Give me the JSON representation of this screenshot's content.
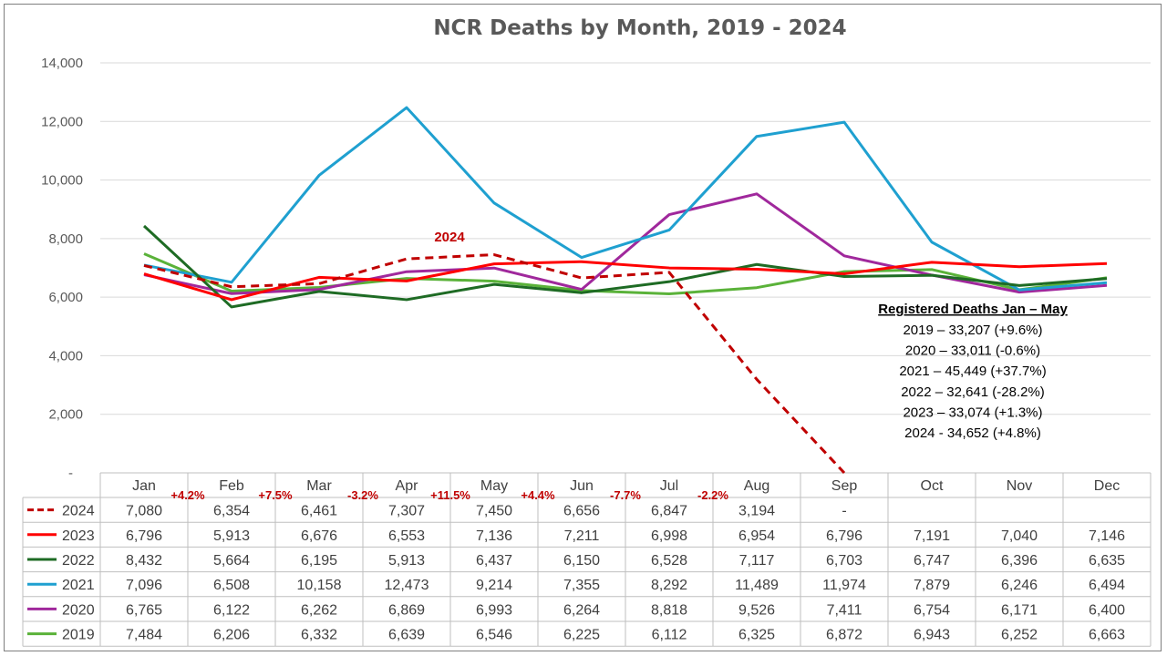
{
  "chart_data": {
    "type": "line",
    "title": "NCR Deaths by Month, 2019 - 2024",
    "categories": [
      "Jan",
      "Feb",
      "Mar",
      "Apr",
      "May",
      "Jun",
      "Jul",
      "Aug",
      "Sep",
      "Oct",
      "Nov",
      "Dec"
    ],
    "y_tick_labels": [
      "-",
      "2,000",
      "4,000",
      "6,000",
      "8,000",
      "10,000",
      "12,000",
      "14,000"
    ],
    "ylim": [
      0,
      14000
    ],
    "grid": true,
    "series": [
      {
        "name": "2024",
        "color": "#c00000",
        "dashed": true,
        "values": [
          7080,
          6354,
          6461,
          7307,
          7450,
          6656,
          6847,
          3194,
          0,
          null,
          null,
          null
        ],
        "labels": [
          "7,080",
          "6,354",
          "6,461",
          "7,307",
          "7,450",
          "6,656",
          "6,847",
          "3,194",
          "-",
          "",
          "",
          ""
        ]
      },
      {
        "name": "2023",
        "color": "#ff0000",
        "dashed": false,
        "values": [
          6796,
          5913,
          6676,
          6553,
          7136,
          7211,
          6998,
          6954,
          6796,
          7191,
          7040,
          7146
        ],
        "labels": [
          "6,796",
          "5,913",
          "6,676",
          "6,553",
          "7,136",
          "7,211",
          "6,998",
          "6,954",
          "6,796",
          "7,191",
          "7,040",
          "7,146"
        ]
      },
      {
        "name": "2022",
        "color": "#1e6b24",
        "dashed": false,
        "values": [
          8432,
          5664,
          6195,
          5913,
          6437,
          6150,
          6528,
          7117,
          6703,
          6747,
          6396,
          6635
        ],
        "labels": [
          "8,432",
          "5,664",
          "6,195",
          "5,913",
          "6,437",
          "6,150",
          "6,528",
          "7,117",
          "6,703",
          "6,747",
          "6,396",
          "6,635"
        ]
      },
      {
        "name": "2021",
        "color": "#1fa0d0",
        "dashed": false,
        "values": [
          7096,
          6508,
          10158,
          12473,
          9214,
          7355,
          8292,
          11489,
          11974,
          7879,
          6246,
          6494
        ],
        "labels": [
          "7,096",
          "6,508",
          "10,158",
          "12,473",
          "9,214",
          "7,355",
          "8,292",
          "11,489",
          "11,974",
          "7,879",
          "6,246",
          "6,494"
        ]
      },
      {
        "name": "2020",
        "color": "#a0289c",
        "dashed": false,
        "values": [
          6765,
          6122,
          6262,
          6869,
          6993,
          6264,
          8818,
          9526,
          7411,
          6754,
          6171,
          6400
        ],
        "labels": [
          "6,765",
          "6,122",
          "6,262",
          "6,869",
          "6,993",
          "6,264",
          "8,818",
          "9,526",
          "7,411",
          "6,754",
          "6,171",
          "6,400"
        ]
      },
      {
        "name": "2019",
        "color": "#5ab239",
        "dashed": false,
        "values": [
          7484,
          6206,
          6332,
          6639,
          6546,
          6225,
          6112,
          6325,
          6872,
          6943,
          6252,
          6663
        ],
        "labels": [
          "7,484",
          "6,206",
          "6,332",
          "6,639",
          "6,546",
          "6,225",
          "6,112",
          "6,325",
          "6,872",
          "6,943",
          "6,252",
          "6,663"
        ]
      }
    ],
    "pct_changes": [
      "+4.2%",
      "+7.5%",
      "-3.2%",
      "+11.5%",
      "+4.4%",
      "-7.7%",
      "-2.2%"
    ],
    "annotation_2024": "2024",
    "summary_box": {
      "title": "Registered Deaths Jan – May",
      "lines": [
        "2019 – 33,207 (+9.6%)",
        "2020 – 33,011 (-0.6%)",
        "2021 – 45,449 (+37.7%)",
        "2022 – 32,641 (-28.2%)",
        "2023 – 33,074 (+1.3%)",
        "2024 - 34,652 (+4.8%)"
      ]
    }
  }
}
